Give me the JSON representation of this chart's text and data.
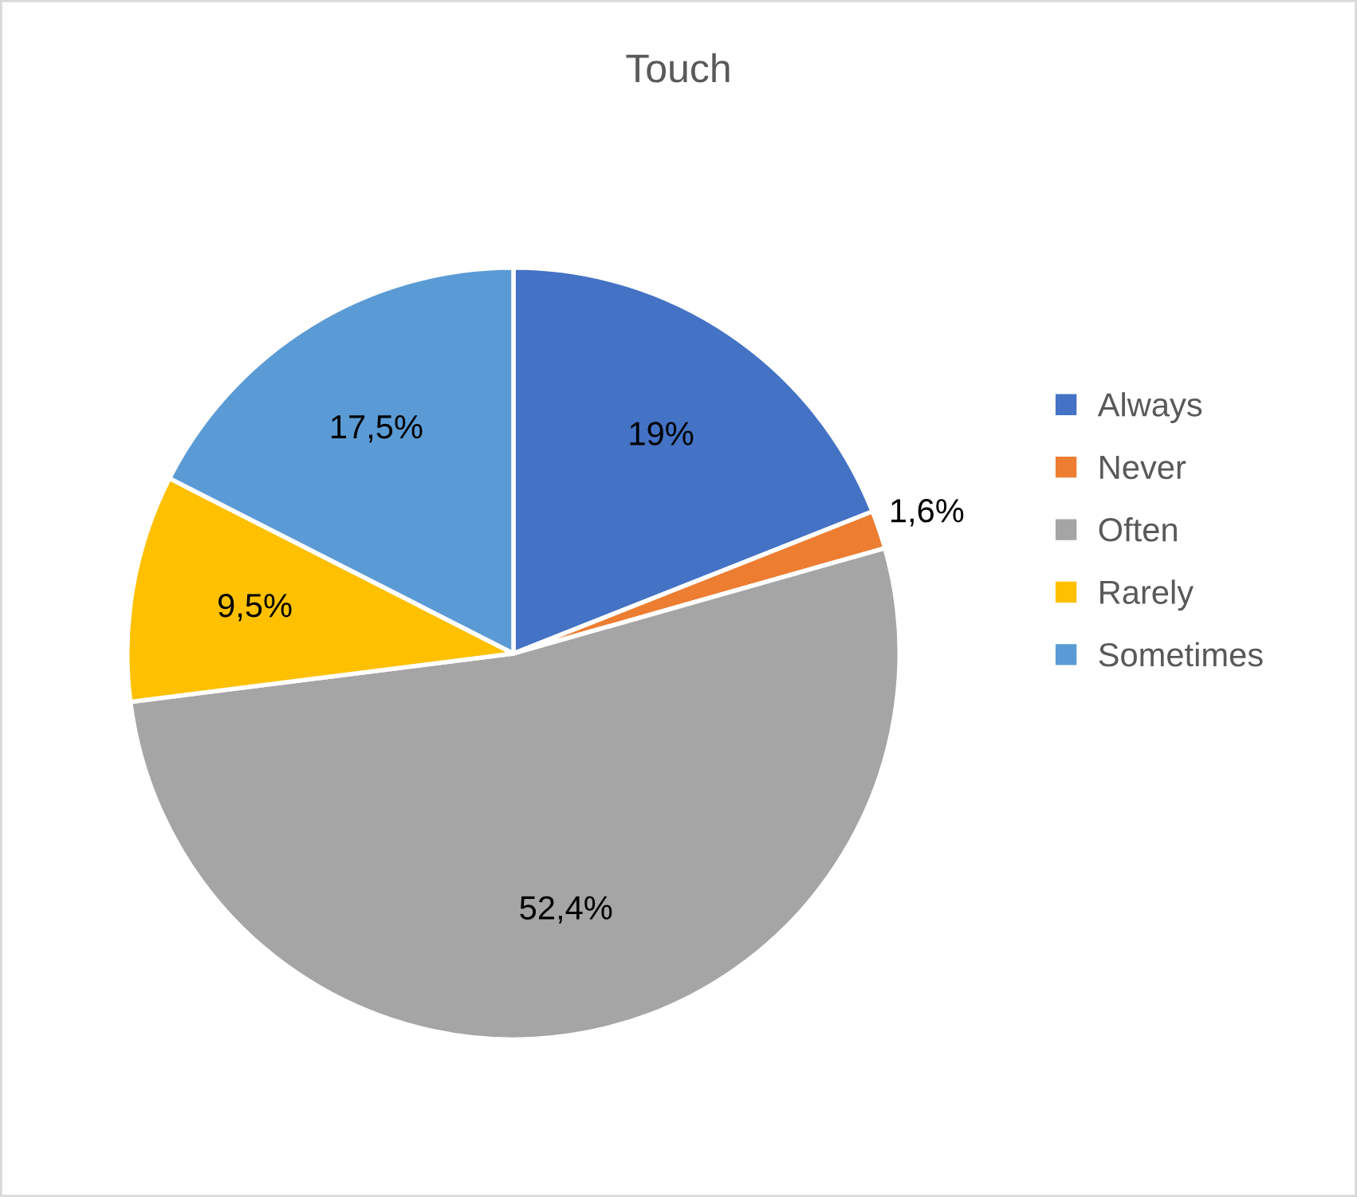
{
  "chart_data": {
    "type": "pie",
    "title": "Touch",
    "categories": [
      "Always",
      "Never",
      "Often",
      "Rarely",
      "Sometimes"
    ],
    "values": [
      19,
      1.6,
      52.4,
      9.5,
      17.5
    ],
    "value_labels": [
      "19%",
      "1,6%",
      "52,4%",
      "9,5%",
      "17,5%"
    ],
    "colors": [
      "#4472c4",
      "#ed7d31",
      "#a5a5a5",
      "#ffc000",
      "#5b9bd5"
    ],
    "legend": "right"
  }
}
